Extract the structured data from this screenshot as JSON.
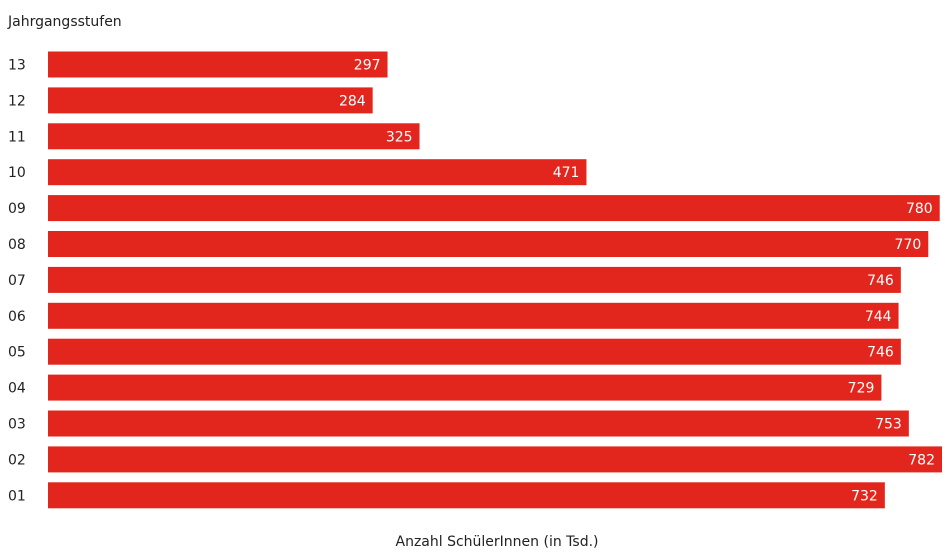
{
  "chart_data": {
    "type": "bar",
    "orientation": "horizontal",
    "ylabel": "Jahrgangsstufen",
    "xlabel": "Anzahl SchülerInnen (in Tsd.)",
    "categories": [
      "13",
      "12",
      "11",
      "10",
      "09",
      "08",
      "07",
      "06",
      "05",
      "04",
      "03",
      "02",
      "01"
    ],
    "values": [
      297,
      284,
      325,
      471,
      780,
      770,
      746,
      744,
      746,
      729,
      753,
      782,
      732
    ],
    "value_labels": [
      "297",
      "284",
      "325",
      "471",
      "780",
      "770",
      "746",
      "744",
      "746",
      "729",
      "753",
      "782",
      "732"
    ],
    "xlim": [
      0,
      782
    ],
    "grid": false,
    "bar_color": "#e2261d",
    "value_label_color": "#ffffff"
  }
}
